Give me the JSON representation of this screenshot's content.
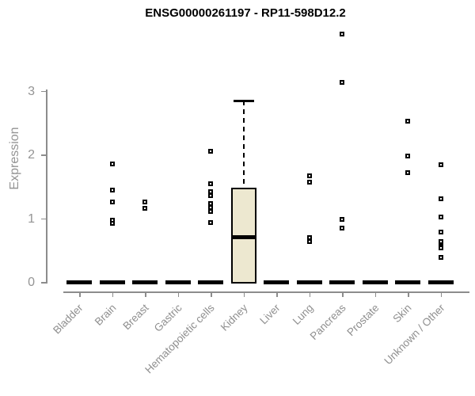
{
  "chart_data": {
    "type": "boxplot",
    "title": "ENSG00000261197 - RP11-598D12.2",
    "xlabel": "",
    "ylabel": "Expression",
    "yticks": [
      0,
      1,
      2,
      3
    ],
    "ylim": [
      0,
      3.9
    ],
    "grid": false,
    "legend": "none",
    "categories": [
      "Bladder",
      "Brain",
      "Breast",
      "Gastric",
      "Hematopoietic cells",
      "Kidney",
      "Liver",
      "Lung",
      "Pancreas",
      "Prostate",
      "Skin",
      "Unknown / Other"
    ],
    "boxes": [
      {
        "category": "Bladder",
        "q1": 0,
        "median": 0,
        "q3": 0,
        "whisker_low": 0,
        "whisker_high": 0,
        "outliers": []
      },
      {
        "category": "Brain",
        "q1": 0,
        "median": 0,
        "q3": 0,
        "whisker_low": 0,
        "whisker_high": 0,
        "outliers": [
          1.85,
          1.44,
          1.26,
          0.97,
          0.92
        ]
      },
      {
        "category": "Breast",
        "q1": 0,
        "median": 0,
        "q3": 0,
        "whisker_low": 0,
        "whisker_high": 0,
        "outliers": [
          1.25,
          1.16
        ]
      },
      {
        "category": "Gastric",
        "q1": 0,
        "median": 0,
        "q3": 0,
        "whisker_low": 0,
        "whisker_high": 0,
        "outliers": []
      },
      {
        "category": "Hematopoietic cells",
        "q1": 0,
        "median": 0,
        "q3": 0,
        "whisker_low": 0,
        "whisker_high": 0,
        "outliers": [
          2.05,
          1.54,
          1.41,
          1.35,
          1.23,
          1.17,
          1.11,
          0.93
        ]
      },
      {
        "category": "Kidney",
        "q1": 0,
        "median": 0.71,
        "q3": 1.48,
        "whisker_low": 0,
        "whisker_high": 2.84,
        "outliers": []
      },
      {
        "category": "Liver",
        "q1": 0,
        "median": 0,
        "q3": 0,
        "whisker_low": 0,
        "whisker_high": 0,
        "outliers": []
      },
      {
        "category": "Lung",
        "q1": 0,
        "median": 0,
        "q3": 0,
        "whisker_low": 0,
        "whisker_high": 0,
        "outliers": [
          1.66,
          1.57,
          0.7,
          0.63
        ]
      },
      {
        "category": "Pancreas",
        "q1": 0,
        "median": 0,
        "q3": 0,
        "whisker_low": 0,
        "whisker_high": 0,
        "outliers": [
          3.89,
          3.13,
          0.98,
          0.84
        ]
      },
      {
        "category": "Prostate",
        "q1": 0,
        "median": 0,
        "q3": 0,
        "whisker_low": 0,
        "whisker_high": 0,
        "outliers": []
      },
      {
        "category": "Skin",
        "q1": 0,
        "median": 0,
        "q3": 0,
        "whisker_low": 0,
        "whisker_high": 0,
        "outliers": [
          2.52,
          1.97,
          1.71
        ]
      },
      {
        "category": "Unknown / Other",
        "q1": 0,
        "median": 0,
        "q3": 0,
        "whisker_low": 0,
        "whisker_high": 0,
        "outliers": [
          1.84,
          1.3,
          1.02,
          0.78,
          0.63,
          0.56,
          0.53,
          0.39
        ]
      }
    ],
    "colors": {
      "box_fill": "#ede8d0",
      "box_line": "#000000",
      "point": "#000000",
      "axis": "#8c8c8c",
      "labels": "#949494",
      "title": "#000000",
      "background": "#ffffff"
    }
  }
}
